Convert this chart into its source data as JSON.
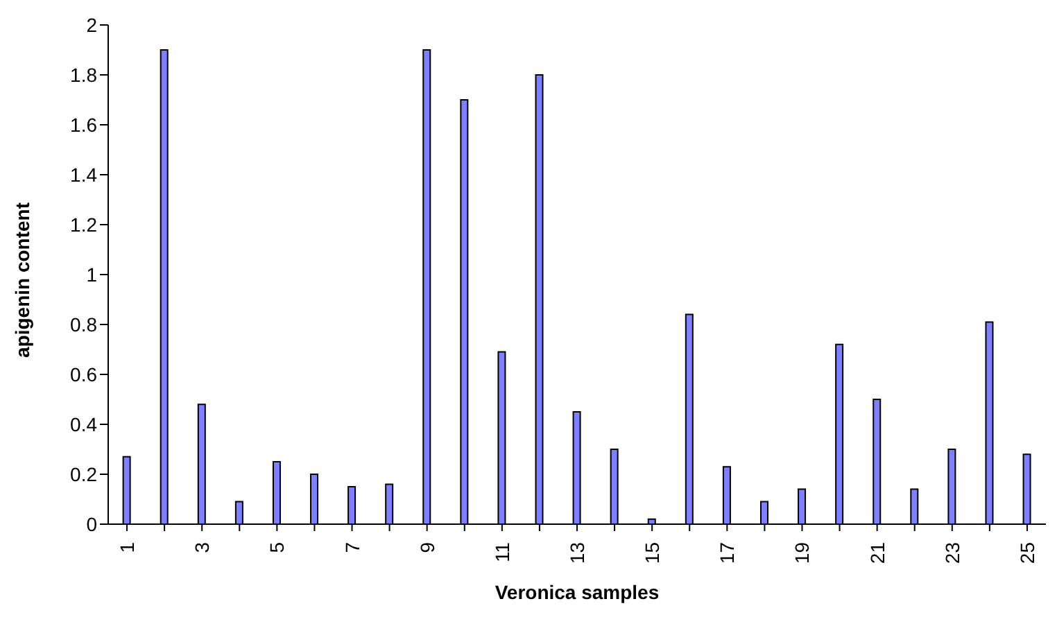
{
  "chart_data": {
    "type": "bar",
    "xlabel": "Veronica samples",
    "ylabel": "apigenin content",
    "categories": [
      "1",
      null,
      "3",
      null,
      "5",
      null,
      "7",
      null,
      "9",
      null,
      "11",
      null,
      "13",
      null,
      "15",
      null,
      "17",
      null,
      "19",
      null,
      "21",
      null,
      "23",
      null,
      "25"
    ],
    "values": [
      0.27,
      1.9,
      0.48,
      0.09,
      0.25,
      0.2,
      0.15,
      0.16,
      1.9,
      1.7,
      0.69,
      1.8,
      0.45,
      0.3,
      0.02,
      0.84,
      0.23,
      0.09,
      0.14,
      0.72,
      0.5,
      0.14,
      0.3,
      0.81,
      0.28
    ],
    "color": "#8080ff",
    "ylim": [
      0,
      2
    ],
    "yticks": [
      0,
      0.2,
      0.4,
      0.6,
      0.8,
      1,
      1.2,
      1.4,
      1.6,
      1.8,
      2
    ],
    "grid": false,
    "legend": false
  }
}
